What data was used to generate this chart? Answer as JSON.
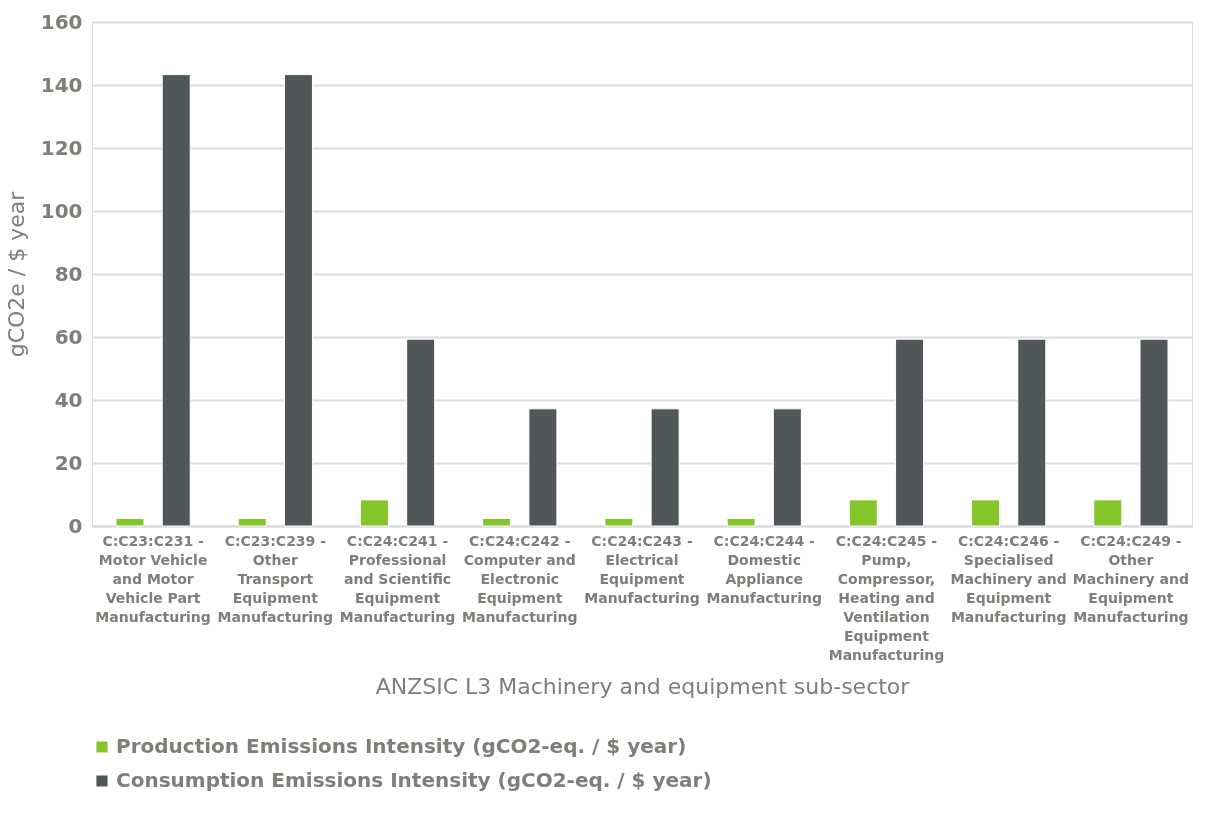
{
  "chart_data": {
    "type": "bar",
    "xlabel": "ANZSIC L3 Machinery and equipment sub-sector",
    "ylabel": "gCO2e / $ year",
    "categories": [
      "C:C23:C231 -\nMotor Vehicle\nand Motor\nVehicle Part\nManufacturing",
      "C:C23:C239 -\nOther\nTransport\nEquipment\nManufacturing",
      "C:C24:C241 -\nProfessional\nand Scientific\nEquipment\nManufacturing",
      "C:C24:C242 -\nComputer and\nElectronic\nEquipment\nManufacturing",
      "C:C24:C243 -\nElectrical\nEquipment\nManufacturing",
      "C:C24:C244 -\nDomestic\nAppliance\nManufacturing",
      "C:C24:C245 -\nPump,\nCompressor,\nHeating and\nVentilation\nEquipment\nManufacturing",
      "C:C24:C246 -\nSpecialised\nMachinery and\nEquipment\nManufacturing",
      "C:C24:C249 -\nOther\nMachinery and\nEquipment\nManufacturing"
    ],
    "series": [
      {
        "name": "Production Emissions Intensity (gCO2-eq. / $ year)",
        "color": "#84c52a",
        "values": [
          2.4,
          2.4,
          8.3,
          2.4,
          2.4,
          2.4,
          8.3,
          8.3,
          8.3
        ]
      },
      {
        "name": "Consumption Emissions Intensity (gCO2-eq. / $ year)",
        "color": "#4f5759",
        "values": [
          143.3,
          143.3,
          59.3,
          37.2,
          37.2,
          37.2,
          59.3,
          59.3,
          59.3
        ]
      }
    ],
    "ylim": [
      0,
      160
    ],
    "yticks": [
      0,
      20,
      40,
      60,
      80,
      100,
      120,
      140,
      160
    ],
    "grid": "y",
    "legend": "bottom"
  }
}
